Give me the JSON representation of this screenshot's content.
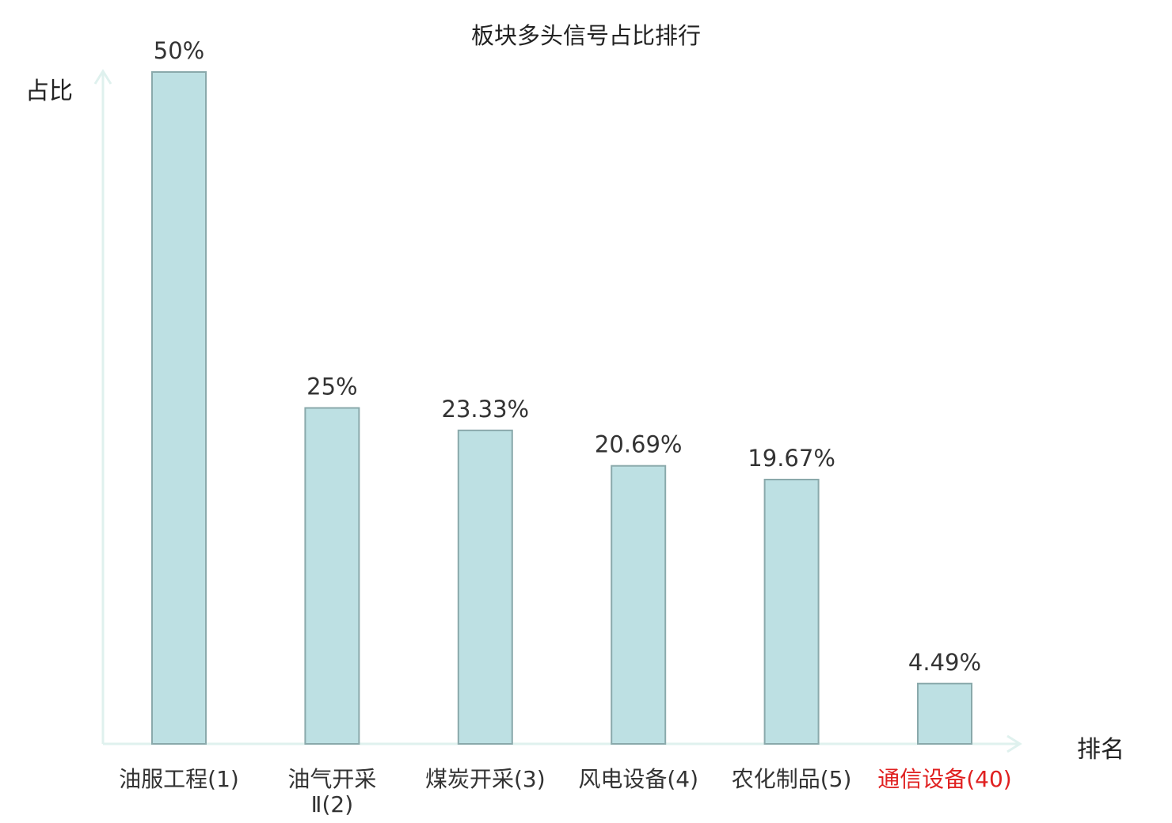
{
  "chart_data": {
    "type": "bar",
    "title": "板块多头信号占比排行",
    "ylabel": "占比",
    "xlabel": "排名",
    "categories": [
      [
        "油服工程(1)"
      ],
      [
        "油气开采",
        "Ⅱ(2)"
      ],
      [
        "煤炭开采(3)"
      ],
      [
        "风电设备(4)"
      ],
      [
        "农化制品(5)"
      ],
      [
        "通信设备(40)"
      ]
    ],
    "values": [
      50,
      25,
      23.33,
      20.69,
      19.67,
      4.49
    ],
    "value_labels": [
      "50%",
      "25%",
      "23.33%",
      "20.69%",
      "19.67%",
      "4.49%"
    ],
    "highlight_index": 5,
    "ylim": [
      0,
      50
    ],
    "grid": false,
    "colors": {
      "bar_fill": "#bde0e3",
      "bar_stroke": "#8aa9ab",
      "axis": "#dff1ee",
      "highlight_text": "#e02020"
    }
  }
}
